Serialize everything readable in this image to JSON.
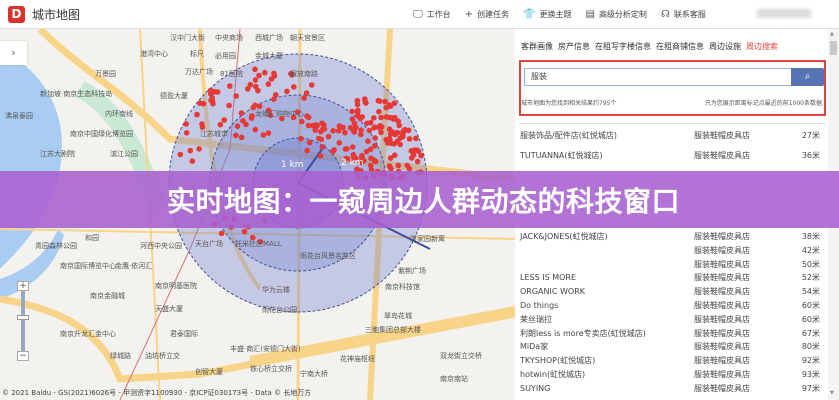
{
  "header": {
    "logo": "D",
    "title": "城市地图",
    "nav": [
      {
        "icon": "monitor-icon",
        "glyph": "🖵",
        "label": "工作台"
      },
      {
        "icon": "plus-icon",
        "glyph": "+",
        "label": "创建任务"
      },
      {
        "icon": "shirt-icon",
        "glyph": "👕",
        "label": "更换主题"
      },
      {
        "icon": "document-icon",
        "glyph": "▤",
        "label": "高级分析定制"
      },
      {
        "icon": "headset-icon",
        "glyph": "☊",
        "label": "联系客服"
      }
    ]
  },
  "map": {
    "collapse": "›",
    "zoom_in": "+",
    "zoom_out": "−",
    "radius_labels": [
      "1 km",
      "2 km"
    ],
    "labels": [
      "汉中门大街",
      "港湾中心",
      "万景园",
      "新加坡·南京生态科技岛",
      "沸泉泰园",
      "万达广场",
      "德盈大厦",
      "内环南线",
      "南京中国绿化博览园",
      "江苏大剧院",
      "滨江公园",
      "中央商场",
      "标尺",
      "必用园",
      "81医院",
      "金城大厦",
      "解放南路",
      "龙蟠汇购物中心",
      "西城广场",
      "朝天宫景区",
      "江苏城市",
      "天台广场",
      "托米社区MALL",
      "雨花台风景名胜区",
      "洪家园新寓",
      "紫荆广场",
      "南京科技馆",
      "华为云楼",
      "雨花台公园",
      "翠岛花城",
      "三胞集团总部大楼",
      "丰盛·商汇(安德门大街)",
      "双龙街立交桥",
      "花神庙枢纽",
      "宁南大桥",
      "南京南站",
      "青园森林公园",
      "和园",
      "南京国际博览中心",
      "河西中央公园",
      "金鹰·依河汇",
      "南京金融城",
      "南京明基医院",
      "天盛大厦",
      "南京升龙汇金中心",
      "君泰国际",
      "绿城路",
      "油坊桥立交",
      "创智大厦",
      "铁心桥立交桥"
    ],
    "copyright": "© 2021 Baidu - GS(2021)6026号 - 甲测资字1100930 - 京ICP证030173号 - Data © 长地万方"
  },
  "panel": {
    "tabs": [
      {
        "label": "客群画像"
      },
      {
        "label": "房产信息"
      },
      {
        "label": "在租写字楼信息"
      },
      {
        "label": "在租商铺信息"
      },
      {
        "label": "周边设施"
      },
      {
        "label": "周边搜索",
        "active": true
      }
    ],
    "search": {
      "value": "服装",
      "button_icon": "search-icon"
    },
    "hint_left": "城市地图为您找到相关结果约795个",
    "hint_right": "只为您展示距离标记点最近的前1000条数据",
    "results": [
      {
        "name": "服装饰品/配件店(虹悦城店)",
        "category": "服装鞋帽皮具店",
        "distance": "27米"
      },
      {
        "name": "TUTUANNA(虹悦城店)",
        "category": "服装鞋帽皮具店",
        "distance": "36米"
      },
      {
        "name": "JACK&JONES(虹悦城店)",
        "category": "服装鞋帽皮具店",
        "distance": "38米"
      },
      {
        "name": "",
        "category": "服装鞋帽皮具店",
        "distance": "42米"
      },
      {
        "name": "",
        "category": "服装鞋帽皮具店",
        "distance": "50米"
      },
      {
        "name": "LESS IS MORE",
        "category": "服装鞋帽皮具店",
        "distance": "52米"
      },
      {
        "name": "ORGANIC WORK",
        "category": "服装鞋帽皮具店",
        "distance": "54米"
      },
      {
        "name": "Do things",
        "category": "服装鞋帽皮具店",
        "distance": "60米"
      },
      {
        "name": "莱丝瑞拉",
        "category": "服装鞋帽皮具店",
        "distance": "60米"
      },
      {
        "name": "利朗less is more专卖店(虹悦城店)",
        "category": "服装鞋帽皮具店",
        "distance": "67米"
      },
      {
        "name": "MiDa家",
        "category": "服装鞋帽皮具店",
        "distance": "80米"
      },
      {
        "name": "TKYSHOP(虹悦城店)",
        "category": "服装鞋帽皮具店",
        "distance": "92米"
      },
      {
        "name": "hotwin(虹悦城店)",
        "category": "服装鞋帽皮具店",
        "distance": "93米"
      },
      {
        "name": "SUYING",
        "category": "服装鞋帽皮具店",
        "distance": "97米"
      }
    ]
  },
  "banner": {
    "text": "实时地图：一窥周边人群动态的科技窗口"
  },
  "colors": {
    "accent_red": "#e0453c",
    "search_blue": "#5674b3",
    "banner_purple": "#a860d0",
    "dot_red": "#e53935",
    "radius_fill": "#6a7fd0"
  }
}
